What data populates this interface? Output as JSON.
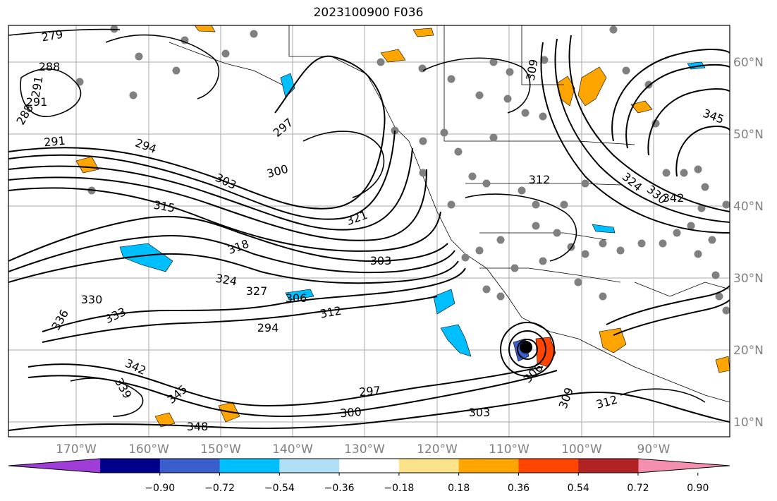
{
  "map": {
    "title": "2023100900 F036",
    "longitude_labels": [
      "170°W",
      "160°W",
      "150°W",
      "140°W",
      "130°W",
      "120°W",
      "110°W",
      "100°W",
      "90°W"
    ],
    "latitude_labels": [
      "60°N",
      "50°N",
      "40°N",
      "30°N",
      "20°N",
      "10°N"
    ],
    "colorbar": {
      "tick_labels": [
        "−0.90",
        "−0.72",
        "−0.54",
        "−0.36",
        "−0.18",
        "0.18",
        "0.36",
        "0.54",
        "0.72",
        "0.90"
      ],
      "colors": [
        "#a03cd8",
        "#00008b",
        "#3a5fcd",
        "#00bfff",
        "#b0e0f8",
        "#ffffff",
        "#fbe38a",
        "#ffa500",
        "#ff4500",
        "#b22222",
        "#f58fb0"
      ]
    },
    "contour_labels": [
      "279",
      "288",
      "291",
      "291",
      "288",
      "291",
      "294",
      "297",
      "300",
      "303",
      "309",
      "312",
      "315",
      "318",
      "321",
      "324",
      "327",
      "330",
      "333",
      "336",
      "339",
      "342",
      "345",
      "348",
      "312",
      "303",
      "306",
      "294",
      "297",
      "300",
      "303",
      "306",
      "309",
      "312",
      "324",
      "330",
      "342",
      "345"
    ],
    "colors": {
      "land_dots": "#808080",
      "contour": "#000000",
      "orange": "#ffa500",
      "cyan": "#00bfff"
    }
  }
}
